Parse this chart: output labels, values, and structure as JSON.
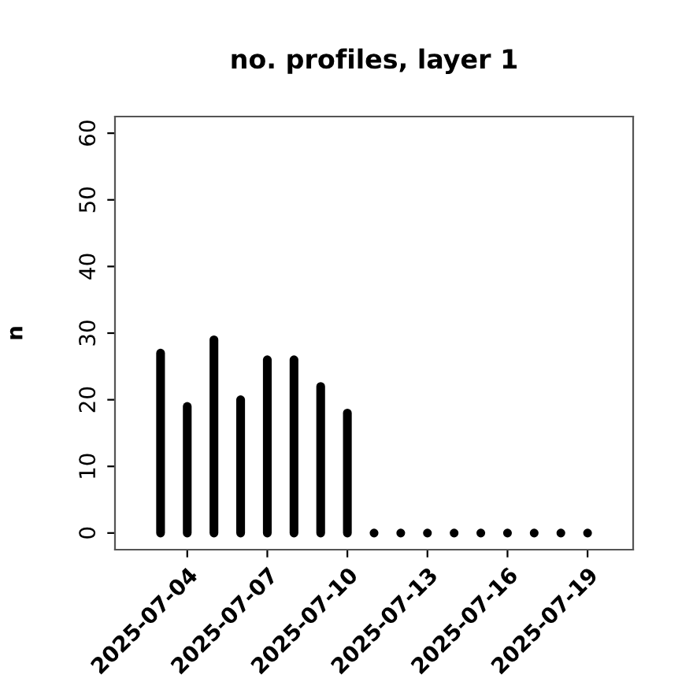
{
  "chart_data": {
    "type": "bar",
    "title": "no. profiles, layer 1",
    "ylabel": "n",
    "x": [
      "2025-07-03",
      "2025-07-04",
      "2025-07-05",
      "2025-07-06",
      "2025-07-07",
      "2025-07-08",
      "2025-07-09",
      "2025-07-10",
      "2025-07-11",
      "2025-07-12",
      "2025-07-13",
      "2025-07-14",
      "2025-07-15",
      "2025-07-16",
      "2025-07-17",
      "2025-07-18",
      "2025-07-19"
    ],
    "values": [
      27,
      19,
      29,
      20,
      26,
      26,
      22,
      18,
      0,
      0,
      0,
      0,
      0,
      0,
      0,
      0,
      0
    ],
    "color": "#000000",
    "xlim": [
      "2025-07-01T07:00",
      "2025-07-20T17:00"
    ],
    "xticks": [
      "2025-07-04",
      "2025-07-07",
      "2025-07-10",
      "2025-07-13",
      "2025-07-16",
      "2025-07-19"
    ],
    "ylim": [
      -2.5,
      62.5
    ],
    "yticks": [
      0,
      10,
      20,
      30,
      40,
      50,
      60
    ],
    "grid": false,
    "legend": false
  }
}
